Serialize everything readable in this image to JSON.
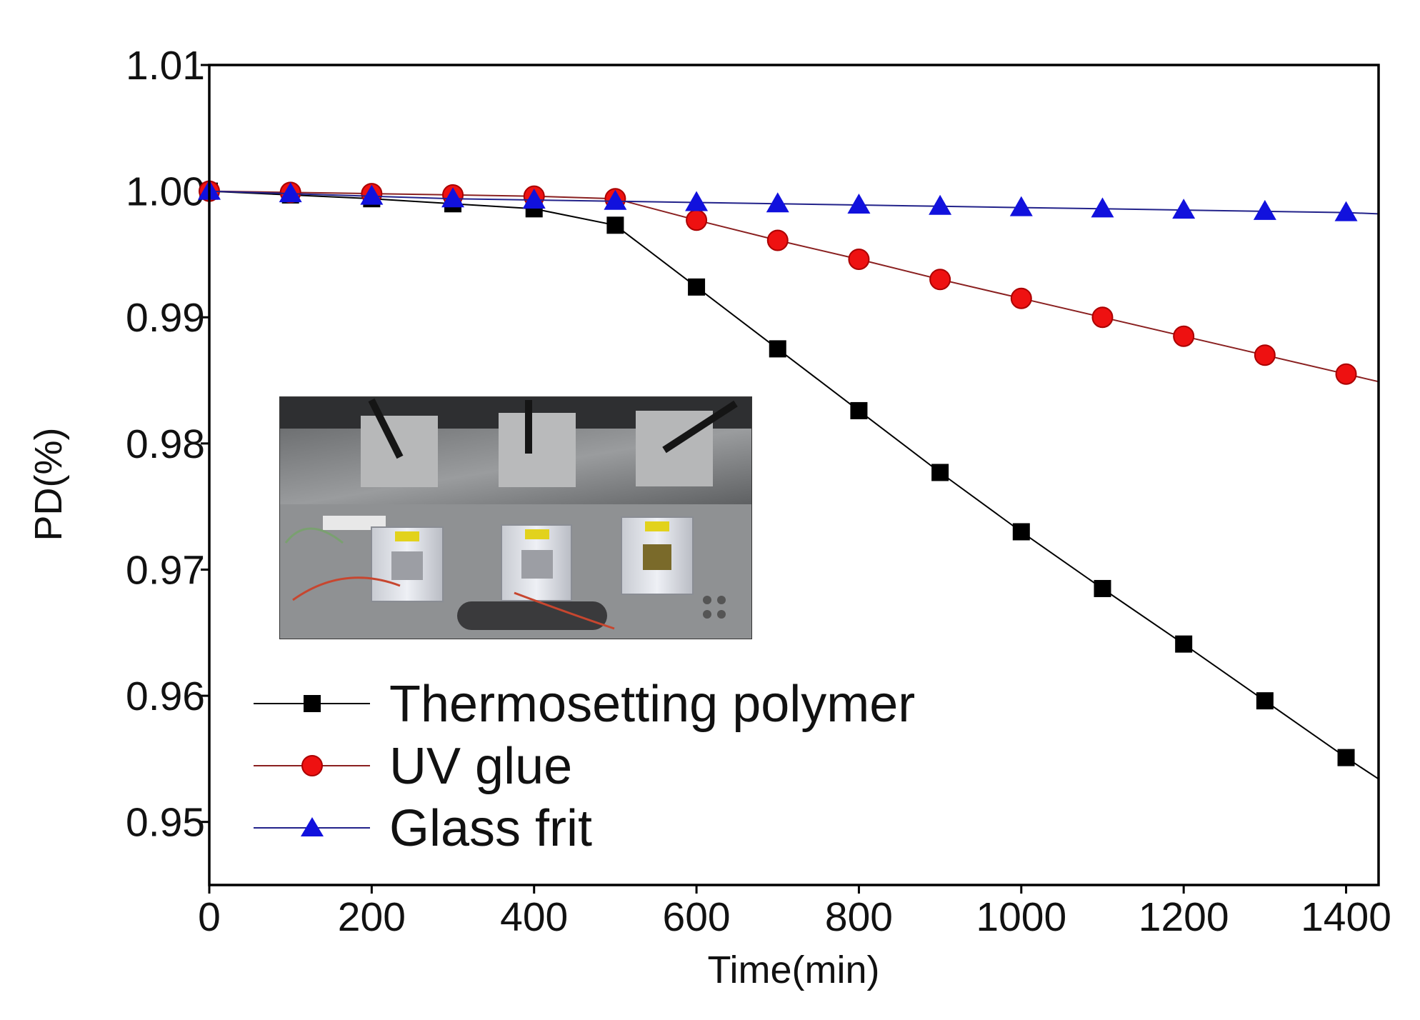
{
  "chart_data": {
    "type": "line",
    "title": "",
    "xlabel": "Time(min)",
    "ylabel": "PD(%)",
    "xlim": [
      0,
      1440
    ],
    "ylim": [
      0.945,
      1.01
    ],
    "x_ticks": [
      0,
      200,
      400,
      600,
      800,
      1000,
      1200,
      1400
    ],
    "x_tick_labels": [
      "0",
      "200",
      "400",
      "600",
      "800",
      "1000",
      "1200",
      "1400"
    ],
    "y_ticks": [
      0.95,
      0.96,
      0.97,
      0.98,
      0.99,
      1.0,
      1.01
    ],
    "y_tick_labels": [
      "0.95",
      "0.96",
      "0.97",
      "0.98",
      "0.99",
      "1.00",
      "1.01"
    ],
    "grid": false,
    "legend_position": "lower-left",
    "inset": "photograph of three sealed sample holders mounted on a test rig",
    "series": [
      {
        "name": "Thermosetting polymer",
        "color": "#000000",
        "marker": "square",
        "x": [
          0,
          100,
          200,
          300,
          400,
          500,
          600,
          700,
          800,
          900,
          1000,
          1100,
          1200,
          1300,
          1400
        ],
        "y": [
          1.0,
          0.9997,
          0.9994,
          0.999,
          0.9986,
          0.9973,
          0.9924,
          0.9875,
          0.9826,
          0.9777,
          0.973,
          0.9685,
          0.9641,
          0.9596,
          0.9551
        ],
        "tail": [
          1440,
          0.9534
        ]
      },
      {
        "name": "UV glue",
        "color": "#ee1111",
        "marker": "circle",
        "x": [
          0,
          100,
          200,
          300,
          400,
          500,
          600,
          700,
          800,
          900,
          1000,
          1100,
          1200,
          1300,
          1400
        ],
        "y": [
          1.0,
          0.9999,
          0.9998,
          0.9997,
          0.9996,
          0.9994,
          0.9977,
          0.9961,
          0.9946,
          0.993,
          0.9915,
          0.99,
          0.9885,
          0.987,
          0.9855
        ],
        "tail": [
          1440,
          0.9849
        ]
      },
      {
        "name": "Glass frit",
        "color": "#1111dd",
        "marker": "triangle",
        "x": [
          0,
          100,
          200,
          300,
          400,
          500,
          600,
          700,
          800,
          900,
          1000,
          1100,
          1200,
          1300,
          1400
        ],
        "y": [
          1.0,
          0.9998,
          0.9996,
          0.9994,
          0.9993,
          0.9992,
          0.9991,
          0.999,
          0.9989,
          0.9988,
          0.9987,
          0.9986,
          0.9985,
          0.9984,
          0.9983
        ],
        "tail": [
          1440,
          0.9982
        ]
      }
    ]
  }
}
